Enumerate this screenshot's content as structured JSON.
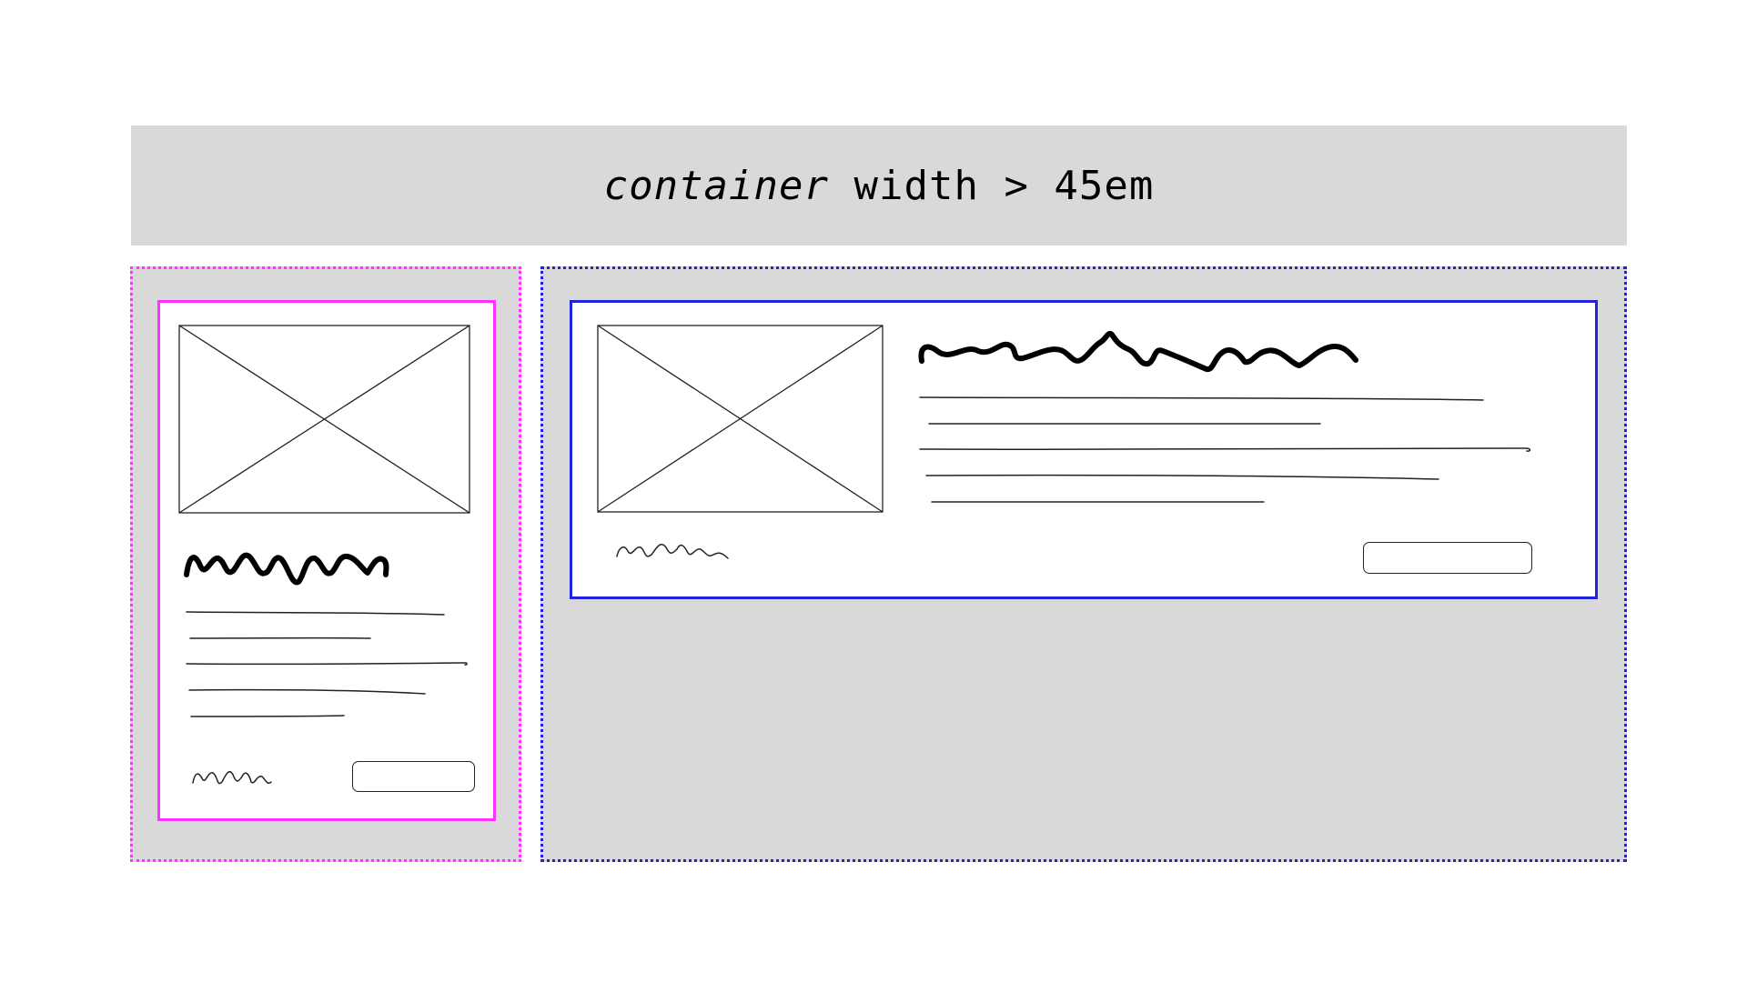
{
  "banner": {
    "keyword": "container",
    "condition": " width > 45em"
  },
  "colors": {
    "background": "#ffffff",
    "panel": "#d9d9d9",
    "narrow_accent": "#ff33ff",
    "wide_accent": "#2222dd",
    "ink": "#000000"
  },
  "cards": [
    {
      "layout": "stacked",
      "image": "image-placeholder-icon",
      "button": "button-placeholder"
    },
    {
      "layout": "side-by-side",
      "image": "image-placeholder-icon",
      "button": "button-placeholder"
    }
  ]
}
